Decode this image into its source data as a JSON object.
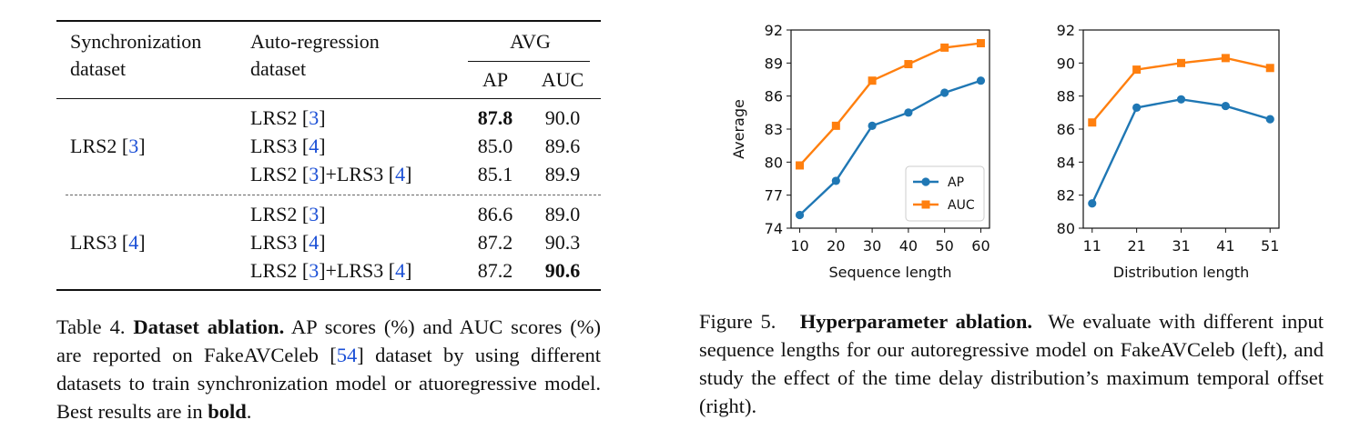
{
  "table": {
    "header": {
      "col1_line1": "Synchronization",
      "col1_line2": "dataset",
      "col2_line1": "Auto-regression",
      "col2_line2": "dataset",
      "group": "AVG",
      "ap": "AP",
      "auc": "AUC"
    },
    "groups": [
      {
        "sync": "LRS2",
        "sync_ref": "3",
        "rows": [
          {
            "parts": [
              {
                "t": "LRS2 [",
                "c": false
              },
              {
                "t": "3",
                "c": true
              },
              {
                "t": "]",
                "c": false
              }
            ],
            "ap": "87.8",
            "auc": "90.0",
            "ap_bold": true,
            "auc_bold": false
          },
          {
            "parts": [
              {
                "t": "LRS3 [",
                "c": false
              },
              {
                "t": "4",
                "c": true
              },
              {
                "t": "]",
                "c": false
              }
            ],
            "ap": "85.0",
            "auc": "89.6",
            "ap_bold": false,
            "auc_bold": false
          },
          {
            "parts": [
              {
                "t": "LRS2 [",
                "c": false
              },
              {
                "t": "3",
                "c": true
              },
              {
                "t": "]+LRS3 [",
                "c": false
              },
              {
                "t": "4",
                "c": true
              },
              {
                "t": "]",
                "c": false
              }
            ],
            "ap": "85.1",
            "auc": "89.9",
            "ap_bold": false,
            "auc_bold": false
          }
        ]
      },
      {
        "sync": "LRS3",
        "sync_ref": "4",
        "rows": [
          {
            "parts": [
              {
                "t": "LRS2 [",
                "c": false
              },
              {
                "t": "3",
                "c": true
              },
              {
                "t": "]",
                "c": false
              }
            ],
            "ap": "86.6",
            "auc": "89.0",
            "ap_bold": false,
            "auc_bold": false
          },
          {
            "parts": [
              {
                "t": "LRS3 [",
                "c": false
              },
              {
                "t": "4",
                "c": true
              },
              {
                "t": "]",
                "c": false
              }
            ],
            "ap": "87.2",
            "auc": "90.3",
            "ap_bold": false,
            "auc_bold": false
          },
          {
            "parts": [
              {
                "t": "LRS2 [",
                "c": false
              },
              {
                "t": "3",
                "c": true
              },
              {
                "t": "]+LRS3 [",
                "c": false
              },
              {
                "t": "4",
                "c": true
              },
              {
                "t": "]",
                "c": false
              }
            ],
            "ap": "87.2",
            "auc": "90.6",
            "ap_bold": false,
            "auc_bold": true
          }
        ]
      }
    ]
  },
  "table_caption": {
    "label": "Table 4.",
    "title": "Dataset ablation.",
    "text1": "AP scores (%) and AUC scores (%) are reported on FakeAVCeleb [",
    "ref": "54",
    "text2": "] dataset by using different datasets to train synchronization model or atuoregressive model. Best results are in",
    "bold_word": "bold",
    "end": "."
  },
  "figure_caption": {
    "label": "Figure 5.",
    "title": "Hyperparameter ablation.",
    "text": "We evaluate with different input sequence lengths for our autoregressive model on FakeAVCeleb (left), and study the effect of the time delay distribution’s maximum temporal offset (right)."
  },
  "colors": {
    "ap": "#1f77b4",
    "auc": "#ff7f0e",
    "cite": "#1a4fd6"
  },
  "chart_data": [
    {
      "type": "line",
      "title": "",
      "xlabel": "Sequence length",
      "ylabel": "Average",
      "x": [
        10,
        20,
        30,
        40,
        50,
        60
      ],
      "xticks": [
        "10",
        "20",
        "30",
        "40",
        "50",
        "60"
      ],
      "xlim": [
        7.6,
        62.4
      ],
      "ylim": [
        74,
        92
      ],
      "yticks": [
        "74",
        "77",
        "80",
        "83",
        "86",
        "89",
        "92"
      ],
      "legend": "lower-right",
      "series": [
        {
          "name": "AP",
          "values": [
            75.2,
            78.3,
            83.3,
            84.5,
            86.3,
            87.4
          ],
          "marker": "circle"
        },
        {
          "name": "AUC",
          "values": [
            79.7,
            83.3,
            87.4,
            88.9,
            90.4,
            90.8
          ],
          "marker": "square"
        }
      ]
    },
    {
      "type": "line",
      "title": "",
      "xlabel": "Distribution length",
      "ylabel": "",
      "x": [
        11,
        21,
        31,
        41,
        51
      ],
      "xticks": [
        "11",
        "21",
        "31",
        "41",
        "51"
      ],
      "xlim": [
        9,
        53
      ],
      "ylim": [
        80,
        92
      ],
      "yticks": [
        "80",
        "82",
        "84",
        "86",
        "88",
        "90",
        "92"
      ],
      "legend": "none",
      "series": [
        {
          "name": "AP",
          "values": [
            81.5,
            87.3,
            87.8,
            87.4,
            86.6
          ],
          "marker": "circle"
        },
        {
          "name": "AUC",
          "values": [
            86.4,
            89.6,
            90.0,
            90.3,
            89.7
          ],
          "marker": "square"
        }
      ]
    }
  ]
}
